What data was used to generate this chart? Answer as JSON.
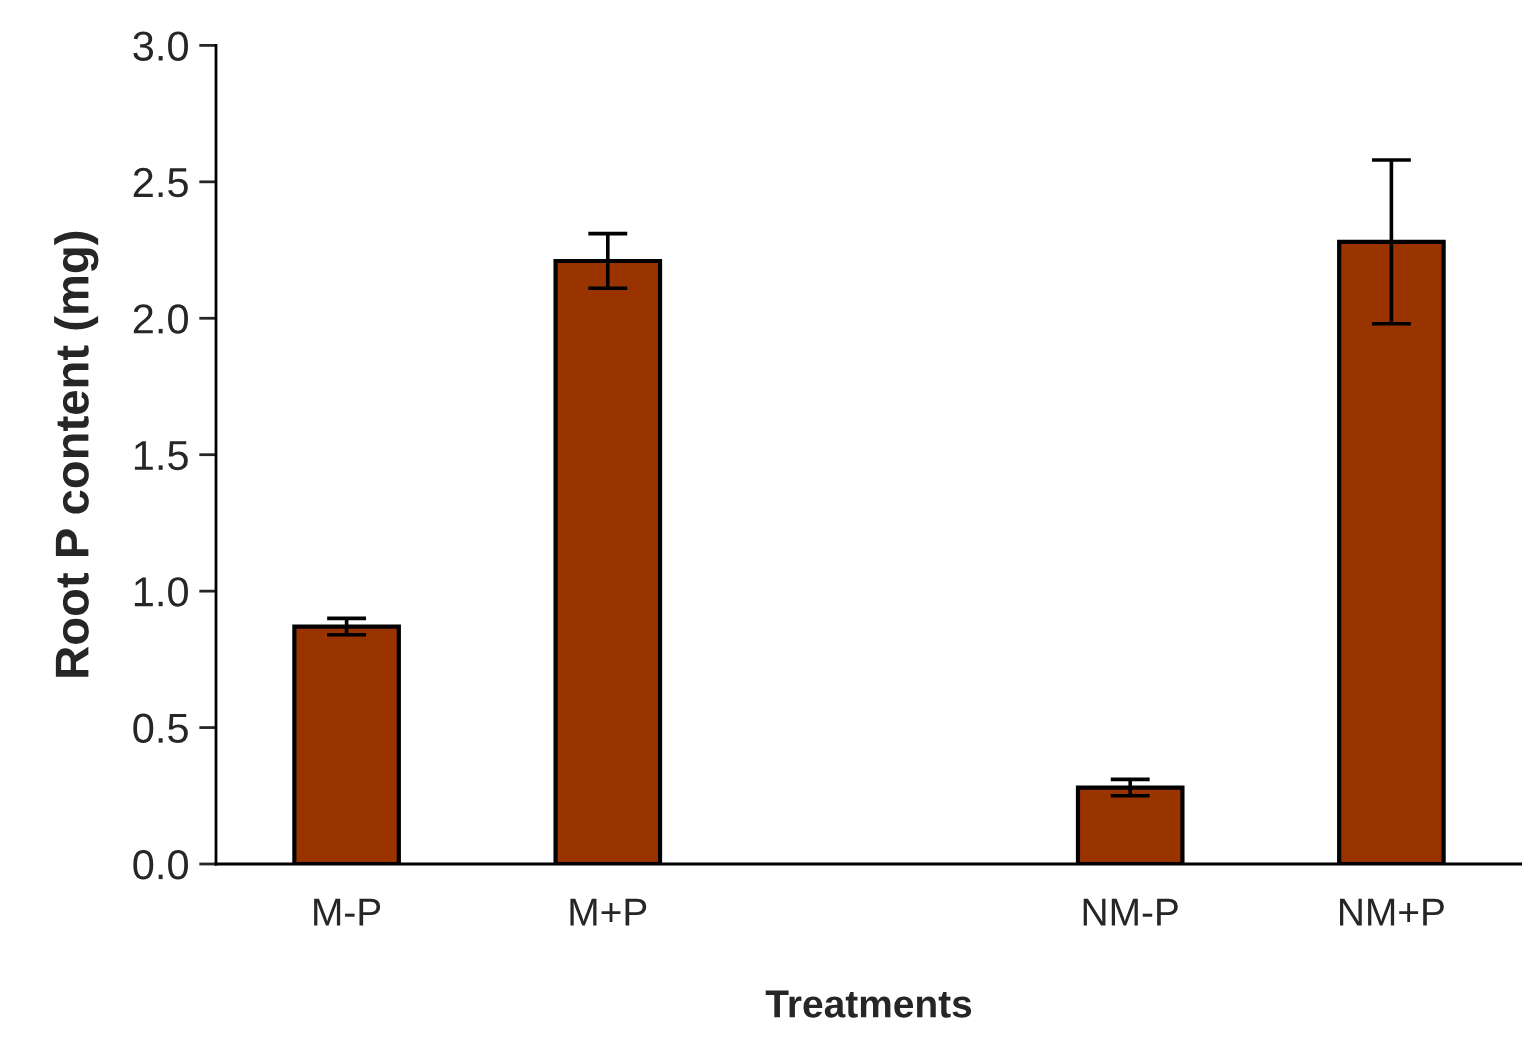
{
  "chart_data": {
    "type": "bar",
    "xlabel": "Treatments",
    "ylabel": "Root P content (mg)",
    "categories": [
      "M-P",
      "M+P",
      null,
      "NM-P",
      "NM+P"
    ],
    "values": [
      0.87,
      2.21,
      null,
      0.28,
      2.28
    ],
    "errors": [
      0.03,
      0.1,
      null,
      0.03,
      0.3
    ],
    "color": "#993300",
    "ylim": [
      0,
      3.0
    ],
    "yticks": [
      {
        "value": 0,
        "label": "0.0"
      },
      {
        "value": 0.5,
        "label": "0.5"
      },
      {
        "value": 1.0,
        "label": "1.0"
      },
      {
        "value": 1.5,
        "label": "1.5"
      },
      {
        "value": 2.0,
        "label": "2.0"
      },
      {
        "value": 2.5,
        "label": "2.5"
      },
      {
        "value": 3.0,
        "label": "3.0"
      }
    ],
    "grid": false,
    "legend": false
  }
}
